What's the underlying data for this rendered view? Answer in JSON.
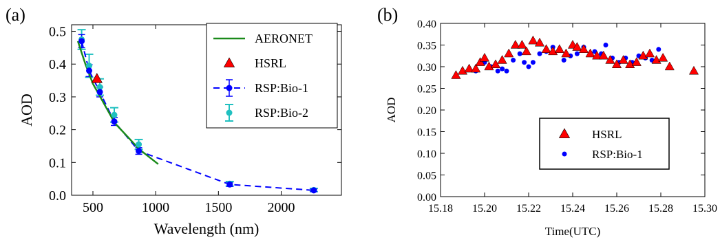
{
  "figure": {
    "panel_a_label": "(a)",
    "panel_b_label": "(b)"
  },
  "chart_data": [
    {
      "type": "line",
      "panel": "(a)",
      "title": "",
      "xlabel": "Wavelength (nm)",
      "ylabel": "AOD",
      "xlim": [
        330,
        2480
      ],
      "ylim": [
        0.0,
        0.52
      ],
      "xticks": [
        500,
        1000,
        1500,
        2000
      ],
      "xtick_labels": [
        "500",
        "1000",
        "1500",
        "2000"
      ],
      "yticks": [
        0.0,
        0.1,
        0.2,
        0.3,
        0.4,
        0.5
      ],
      "ytick_labels": [
        "0.0",
        "0.1",
        "0.2",
        "0.3",
        "0.4",
        "0.5"
      ],
      "grid": false,
      "legend_position": "top-right",
      "series": [
        {
          "name": "AERONET",
          "style": "line",
          "color": "#1a8a1a",
          "x": [
            380,
            440,
            500,
            675,
            870,
            1020
          ],
          "y": [
            0.47,
            0.4,
            0.34,
            0.22,
            0.14,
            0.095
          ]
        },
        {
          "name": "HSRL",
          "style": "triangle-markers",
          "color": "#ff0000",
          "x": [
            532
          ],
          "y": [
            0.355
          ]
        },
        {
          "name": "RSP:Bio-1",
          "style": "dashed-line-errorbars",
          "color": "#0000ff",
          "x": [
            410,
            470,
            555,
            670,
            865,
            1590,
            2260
          ],
          "y": [
            0.47,
            0.38,
            0.315,
            0.225,
            0.135,
            0.033,
            0.015
          ],
          "err": [
            0.02,
            0.018,
            0.015,
            0.012,
            0.01,
            0.006,
            0.004
          ]
        },
        {
          "name": "RSP:Bio-2",
          "style": "errorbars",
          "color": "#20c0c0",
          "x": [
            410,
            470,
            555,
            670,
            865,
            1590,
            2260
          ],
          "y": [
            0.475,
            0.395,
            0.33,
            0.245,
            0.155,
            0.035,
            0.016
          ],
          "err": [
            0.03,
            0.035,
            0.025,
            0.022,
            0.015,
            0.007,
            0.005
          ]
        }
      ]
    },
    {
      "type": "scatter",
      "panel": "(b)",
      "title": "",
      "xlabel": "Time(UTC)",
      "ylabel": "AOD",
      "xlim": [
        15.18,
        15.3
      ],
      "ylim": [
        0.0,
        0.4
      ],
      "xticks": [
        15.18,
        15.2,
        15.22,
        15.24,
        15.26,
        15.28,
        15.3
      ],
      "xtick_labels": [
        "15.18",
        "15.20",
        "15.22",
        "15.24",
        "15.26",
        "15.28",
        "15.30"
      ],
      "yticks": [
        0.0,
        0.05,
        0.1,
        0.15,
        0.2,
        0.25,
        0.3,
        0.35,
        0.4
      ],
      "ytick_labels": [
        "0.00",
        "0.05",
        "0.10",
        "0.15",
        "0.20",
        "0.25",
        "0.30",
        "0.35",
        "0.40"
      ],
      "grid": false,
      "legend_position": "lower-right",
      "series": [
        {
          "name": "HSRL",
          "marker": "triangle",
          "color": "#ff0000",
          "x": [
            15.187,
            15.19,
            15.193,
            15.196,
            15.198,
            15.2,
            15.202,
            15.205,
            15.208,
            15.211,
            15.214,
            15.217,
            15.219,
            15.222,
            15.225,
            15.228,
            15.231,
            15.234,
            15.237,
            15.24,
            15.242,
            15.245,
            15.248,
            15.251,
            15.254,
            15.257,
            15.26,
            15.263,
            15.266,
            15.269,
            15.272,
            15.275,
            15.278,
            15.281,
            15.284,
            15.295
          ],
          "y": [
            0.28,
            0.29,
            0.295,
            0.295,
            0.31,
            0.32,
            0.3,
            0.305,
            0.315,
            0.33,
            0.35,
            0.35,
            0.335,
            0.36,
            0.355,
            0.34,
            0.335,
            0.34,
            0.33,
            0.35,
            0.345,
            0.34,
            0.33,
            0.325,
            0.325,
            0.315,
            0.305,
            0.315,
            0.305,
            0.31,
            0.325,
            0.33,
            0.315,
            0.32,
            0.3,
            0.29
          ]
        },
        {
          "name": "RSP:Bio-1",
          "marker": "circle",
          "color": "#0000ff",
          "x": [
            15.196,
            15.2,
            15.203,
            15.206,
            15.208,
            15.21,
            15.213,
            15.216,
            15.218,
            15.22,
            15.222,
            15.225,
            15.228,
            15.231,
            15.234,
            15.236,
            15.239,
            15.242,
            15.245,
            15.248,
            15.25,
            15.253,
            15.255,
            15.258,
            15.261,
            15.264,
            15.267,
            15.27,
            15.273,
            15.276,
            15.279
          ],
          "y": [
            0.29,
            0.31,
            0.3,
            0.29,
            0.295,
            0.29,
            0.315,
            0.33,
            0.31,
            0.3,
            0.31,
            0.33,
            0.335,
            0.345,
            0.34,
            0.315,
            0.325,
            0.33,
            0.345,
            0.33,
            0.335,
            0.33,
            0.35,
            0.32,
            0.31,
            0.32,
            0.31,
            0.325,
            0.32,
            0.315,
            0.34
          ]
        }
      ]
    }
  ]
}
